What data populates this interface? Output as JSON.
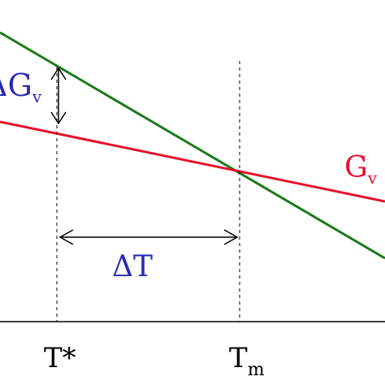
{
  "labels": {
    "delta_g": "ΔG",
    "delta_g_sub": "v",
    "g_liquid": "G",
    "g_liquid_sub": "v",
    "delta_t": "ΔT",
    "t_star": "T*",
    "t_melt": "T",
    "t_melt_sub": "m"
  },
  "colors": {
    "green_line": "#1a7a1a",
    "red_line": "#e8102a",
    "blue_text": "#2a2ab0",
    "red_text": "#e8102a",
    "axis": "#000000"
  }
}
